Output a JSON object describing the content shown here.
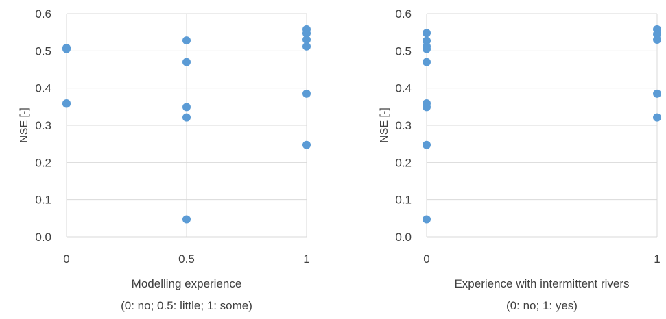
{
  "chart_data": [
    {
      "type": "scatter",
      "title": "",
      "ylabel": "NSE [-]",
      "xlabel_lines": [
        "Modelling experience",
        "(0: no; 0.5: little; 1: some)"
      ],
      "ylim": [
        0,
        0.6
      ],
      "yticks": [
        "0.0",
        "0.1",
        "0.2",
        "0.3",
        "0.4",
        "0.5",
        "0.6"
      ],
      "xlim": [
        0,
        1
      ],
      "xticks": [
        "0",
        "0.5",
        "1"
      ],
      "grid": "vertical",
      "marker_color": "#5B9BD5",
      "points": [
        {
          "x": 0,
          "y": 0.508
        },
        {
          "x": 0,
          "y": 0.505
        },
        {
          "x": 0,
          "y": 0.359
        },
        {
          "x": 0,
          "y": 0.358
        },
        {
          "x": 0.5,
          "y": 0.528
        },
        {
          "x": 0.5,
          "y": 0.47
        },
        {
          "x": 0.5,
          "y": 0.349
        },
        {
          "x": 0.5,
          "y": 0.321
        },
        {
          "x": 0.5,
          "y": 0.047
        },
        {
          "x": 1,
          "y": 0.558
        },
        {
          "x": 1,
          "y": 0.547
        },
        {
          "x": 1,
          "y": 0.53
        },
        {
          "x": 1,
          "y": 0.512
        },
        {
          "x": 1,
          "y": 0.385
        },
        {
          "x": 1,
          "y": 0.247
        }
      ]
    },
    {
      "type": "scatter",
      "title": "",
      "ylabel": "NSE [-]",
      "xlabel_lines": [
        "Experience with intermittent rivers",
        "(0: no; 1: yes)"
      ],
      "ylim": [
        0,
        0.6
      ],
      "yticks": [
        "0.0",
        "0.1",
        "0.2",
        "0.3",
        "0.4",
        "0.5",
        "0.6"
      ],
      "xlim": [
        0,
        1
      ],
      "xticks": [
        "0",
        "1"
      ],
      "grid": "vertical",
      "marker_color": "#5B9BD5",
      "points": [
        {
          "x": 0,
          "y": 0.548
        },
        {
          "x": 0,
          "y": 0.527
        },
        {
          "x": 0,
          "y": 0.512
        },
        {
          "x": 0,
          "y": 0.505
        },
        {
          "x": 0,
          "y": 0.47
        },
        {
          "x": 0,
          "y": 0.359
        },
        {
          "x": 0,
          "y": 0.349
        },
        {
          "x": 0,
          "y": 0.247
        },
        {
          "x": 0,
          "y": 0.047
        },
        {
          "x": 1,
          "y": 0.558
        },
        {
          "x": 1,
          "y": 0.545
        },
        {
          "x": 1,
          "y": 0.53
        },
        {
          "x": 1,
          "y": 0.385
        },
        {
          "x": 1,
          "y": 0.321
        }
      ]
    }
  ]
}
